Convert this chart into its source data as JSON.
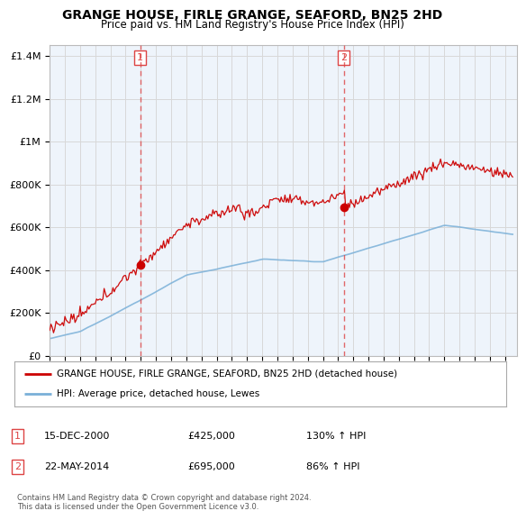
{
  "title": "GRANGE HOUSE, FIRLE GRANGE, SEAFORD, BN25 2HD",
  "subtitle": "Price paid vs. HM Land Registry's House Price Index (HPI)",
  "legend_line1": "GRANGE HOUSE, FIRLE GRANGE, SEAFORD, BN25 2HD (detached house)",
  "legend_line2": "HPI: Average price, detached house, Lewes",
  "sale1_date": "15-DEC-2000",
  "sale1_price": "£425,000",
  "sale1_hpi": "130% ↑ HPI",
  "sale1_year": 2000.96,
  "sale1_value": 425000,
  "sale2_date": "22-MAY-2014",
  "sale2_price": "£695,000",
  "sale2_hpi": "86% ↑ HPI",
  "sale2_year": 2014.38,
  "sale2_value": 695000,
  "hpi_color": "#7ab0d8",
  "price_color": "#cc0000",
  "vline_color": "#dd4444",
  "ylim": [
    0,
    1450000
  ],
  "xlim_start": 1995.0,
  "xlim_end": 2025.8,
  "footnote": "Contains HM Land Registry data © Crown copyright and database right 2024.\nThis data is licensed under the Open Government Licence v3.0.",
  "background_color": "#ffffff",
  "grid_color": "#d8d8d8",
  "chart_bg": "#eef4fb"
}
